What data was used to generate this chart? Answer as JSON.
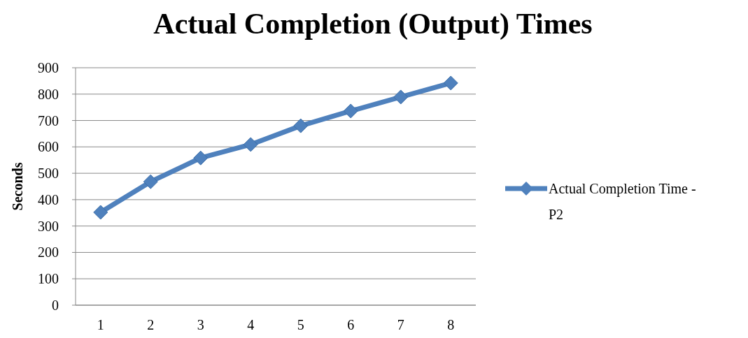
{
  "chart_data": {
    "type": "line",
    "title": "Actual Completion (Output) Times",
    "ylabel": "Seconds",
    "categories": [
      "1",
      "2",
      "3",
      "4",
      "5",
      "6",
      "7",
      "8"
    ],
    "series": [
      {
        "name": "Actual Completion Time - P2",
        "color": "#4f81bd",
        "values": [
          352,
          468,
          558,
          609,
          680,
          736,
          789,
          842
        ]
      }
    ],
    "ylim": [
      0,
      900
    ],
    "yticks": [
      0,
      100,
      200,
      300,
      400,
      500,
      600,
      700,
      800,
      900
    ],
    "grid": "y",
    "legend": "right",
    "marker": "diamond",
    "line_style": "solid"
  }
}
